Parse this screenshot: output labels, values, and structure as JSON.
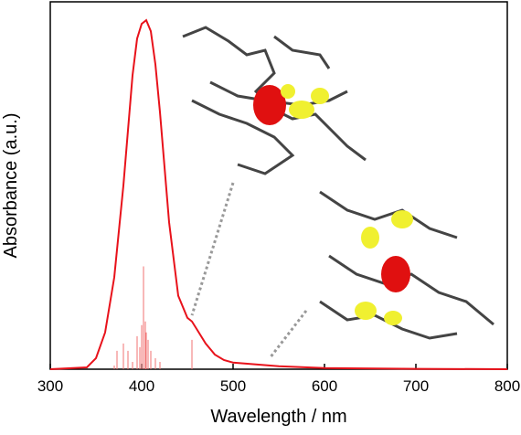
{
  "chart_data": {
    "type": "line",
    "x_label": "Wavelength / nm",
    "y_label": "Absorbance (a.u.)",
    "xlim": [
      300,
      800
    ],
    "ylim": [
      0,
      1
    ],
    "xticks": [
      300,
      400,
      500,
      600,
      700,
      800
    ],
    "series": [
      {
        "style": "line",
        "color": "#e8121b",
        "x": [
          300,
          340,
          350,
          360,
          370,
          380,
          390,
          395,
          400,
          405,
          410,
          415,
          420,
          430,
          440,
          450,
          455,
          460,
          470,
          480,
          490,
          500,
          550,
          600,
          700,
          800
        ],
        "values": [
          0,
          0.005,
          0.03,
          0.1,
          0.25,
          0.5,
          0.8,
          0.9,
          0.94,
          0.95,
          0.92,
          0.83,
          0.7,
          0.4,
          0.2,
          0.14,
          0.13,
          0.11,
          0.07,
          0.04,
          0.025,
          0.018,
          0.008,
          0.003,
          0.001,
          0
        ]
      },
      {
        "style": "stick",
        "color": "#f07070",
        "x": [
          370,
          373,
          380,
          385,
          390,
          395,
          398,
          400,
          402,
          404,
          405,
          407,
          410,
          415,
          420,
          455
        ],
        "values": [
          0.01,
          0.05,
          0.07,
          0.05,
          0.02,
          0.09,
          0.06,
          0.12,
          0.28,
          0.13,
          0.1,
          0.08,
          0.05,
          0.03,
          0.02,
          0.08
        ]
      }
    ]
  }
}
